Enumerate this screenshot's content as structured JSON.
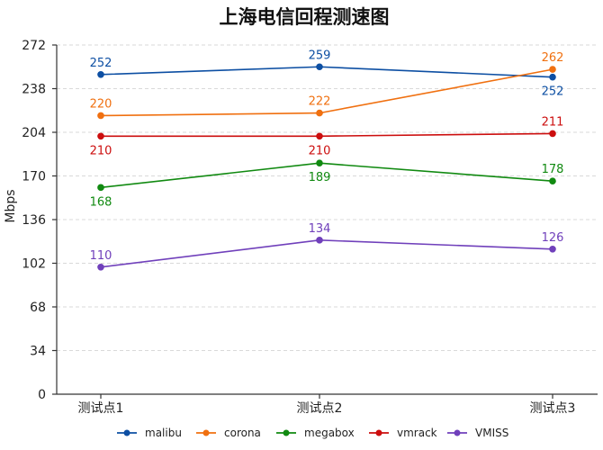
{
  "chart_data": {
    "type": "line",
    "title": "上海电信回程测速图",
    "xlabel": "",
    "ylabel": "Mbps",
    "categories": [
      "测试点1",
      "测试点2",
      "测试点3"
    ],
    "y_ticks": [
      0,
      34,
      68,
      102,
      136,
      170,
      204,
      238,
      272
    ],
    "ylim": [
      0,
      272
    ],
    "grid": true,
    "legend_position": "bottom",
    "series": [
      {
        "name": "malibu",
        "color": "#0d4fa3",
        "values": [
          252,
          259,
          252
        ],
        "plot_values": [
          249,
          255,
          247
        ]
      },
      {
        "name": "corona",
        "color": "#f07010",
        "values": [
          220,
          222,
          262
        ],
        "plot_values": [
          217,
          219,
          253
        ]
      },
      {
        "name": "megabox",
        "color": "#118a11",
        "values": [
          168,
          189,
          178
        ],
        "plot_values": [
          161,
          180,
          166
        ]
      },
      {
        "name": "vmrack",
        "color": "#cc0e0e",
        "values": [
          210,
          210,
          211
        ],
        "plot_values": [
          201,
          201,
          203
        ]
      },
      {
        "name": "VMISS",
        "color": "#7040bb",
        "values": [
          110,
          134,
          126
        ],
        "plot_values": [
          99,
          120,
          113
        ]
      }
    ],
    "label_placement": [
      [
        "above",
        "above",
        "below"
      ],
      [
        "above",
        "above",
        "above"
      ],
      [
        "below",
        "below",
        "above"
      ],
      [
        "below",
        "below",
        "above"
      ],
      [
        "above",
        "above",
        "above"
      ]
    ]
  }
}
